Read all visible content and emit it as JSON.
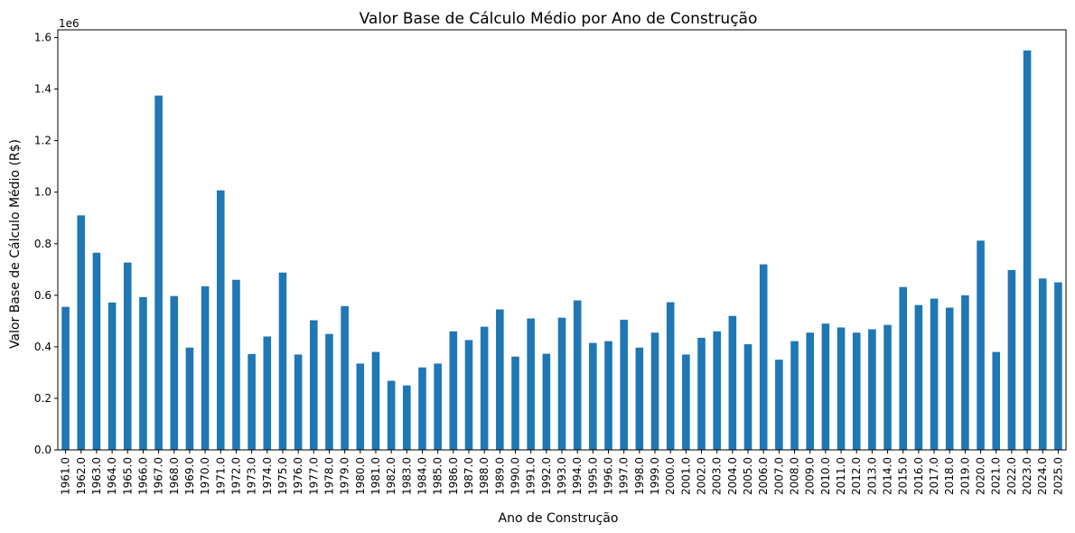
{
  "chart_data": {
    "type": "bar",
    "title": "Valor Base de Cálculo Médio por Ano de Construção",
    "xlabel": "Ano de Construção",
    "ylabel": "Valor Base de Cálculo Médio (R$)",
    "offset_text": "1e6",
    "bar_color": "#1f77b4",
    "ylim": [
      0,
      1.63
    ],
    "yticks": [
      "0.0",
      "0.2",
      "0.4",
      "0.6",
      "0.8",
      "1.0",
      "1.2",
      "1.4",
      "1.6"
    ],
    "grid": false,
    "legend": "none",
    "categories": [
      "1961.0",
      "1962.0",
      "1963.0",
      "1964.0",
      "1965.0",
      "1966.0",
      "1967.0",
      "1968.0",
      "1969.0",
      "1970.0",
      "1971.0",
      "1972.0",
      "1973.0",
      "1974.0",
      "1975.0",
      "1976.0",
      "1977.0",
      "1978.0",
      "1979.0",
      "1980.0",
      "1981.0",
      "1982.0",
      "1983.0",
      "1984.0",
      "1985.0",
      "1986.0",
      "1987.0",
      "1988.0",
      "1989.0",
      "1990.0",
      "1991.0",
      "1992.0",
      "1993.0",
      "1994.0",
      "1995.0",
      "1996.0",
      "1997.0",
      "1998.0",
      "1999.0",
      "2000.0",
      "2001.0",
      "2002.0",
      "2003.0",
      "2004.0",
      "2005.0",
      "2006.0",
      "2007.0",
      "2008.0",
      "2009.0",
      "2010.0",
      "2011.0",
      "2012.0",
      "2013.0",
      "2014.0",
      "2015.0",
      "2016.0",
      "2017.0",
      "2018.0",
      "2019.0",
      "2020.0",
      "2021.0",
      "2022.0",
      "2023.0",
      "2024.0",
      "2025.0"
    ],
    "values": [
      0.555,
      0.91,
      0.765,
      0.572,
      0.727,
      0.593,
      1.375,
      0.597,
      0.397,
      0.635,
      1.007,
      0.66,
      0.372,
      0.44,
      0.688,
      0.37,
      0.503,
      0.45,
      0.558,
      0.335,
      0.38,
      0.268,
      0.25,
      0.32,
      0.335,
      0.46,
      0.426,
      0.478,
      0.545,
      0.362,
      0.51,
      0.373,
      0.513,
      0.58,
      0.415,
      0.422,
      0.505,
      0.397,
      0.455,
      0.573,
      0.37,
      0.435,
      0.46,
      0.52,
      0.41,
      0.72,
      0.35,
      0.422,
      0.455,
      0.49,
      0.475,
      0.455,
      0.468,
      0.485,
      0.632,
      0.562,
      0.587,
      0.552,
      0.6,
      0.812,
      0.38,
      0.698,
      1.55,
      0.665,
      0.65
    ]
  }
}
